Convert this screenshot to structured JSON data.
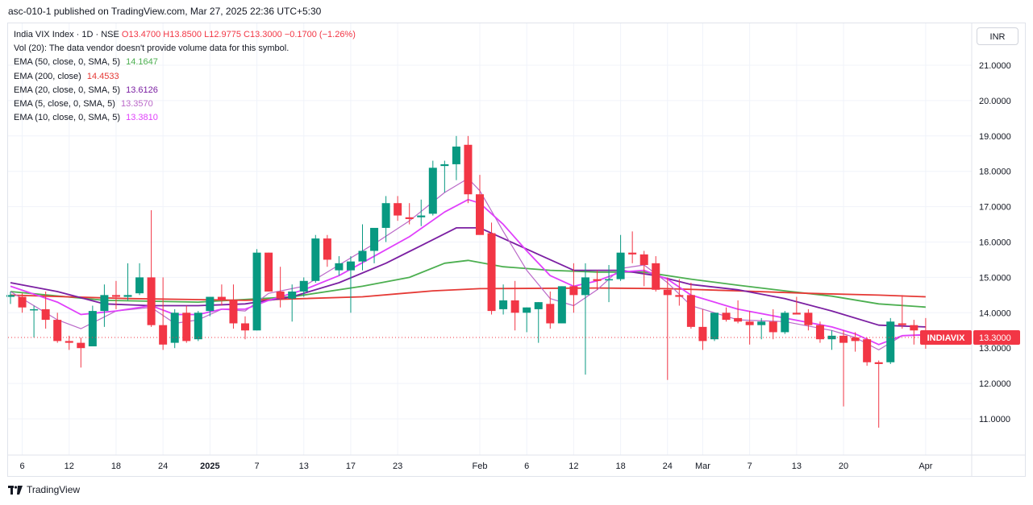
{
  "header": {
    "published": "asc-010-1 published on TradingView.com, Mar 27, 2025 22:36 UTC+5:30"
  },
  "legend": {
    "symbol": "India VIX Index · 1D · NSE",
    "open": "O13.4700",
    "high": "H13.8500",
    "low": "L12.9775",
    "close": "C13.3000",
    "change": "−0.1700 (−1.26%)",
    "vol": "Vol (20): The data vendor doesn't provide volume data for this symbol.",
    "indicators": [
      {
        "label": "EMA (50, close, 0, SMA, 5)",
        "value": "14.1647",
        "color": "#4caf50"
      },
      {
        "label": "EMA (200, close)",
        "value": "14.4533",
        "color": "#e53935"
      },
      {
        "label": "EMA (20, close, 0, SMA, 5)",
        "value": "13.6126",
        "color": "#7b1fa2"
      },
      {
        "label": "EMA (5, close, 0, SMA, 5)",
        "value": "13.3570",
        "color": "#ba68c8"
      },
      {
        "label": "EMA (10, close, 0, SMA, 5)",
        "value": "13.3810",
        "color": "#e040fb"
      }
    ]
  },
  "currency": "INR",
  "brand": "TradingView",
  "colors": {
    "up": "#089981",
    "down": "#f23645",
    "grid": "#f0f3fa",
    "axis_text": "#131722",
    "last_price_bg": "#f23645"
  },
  "chart_data": {
    "type": "candlestick",
    "title": "India VIX Index · 1D · NSE",
    "ylim": [
      10.5,
      21.5
    ],
    "y_ticks": [
      "11.0000",
      "12.0000",
      "13.0000",
      "14.0000",
      "15.0000",
      "16.0000",
      "17.0000",
      "18.0000",
      "19.0000",
      "20.0000",
      "21.0000"
    ],
    "x_ticks": [
      {
        "label": "6",
        "index": 1
      },
      {
        "label": "12",
        "index": 5
      },
      {
        "label": "18",
        "index": 9
      },
      {
        "label": "24",
        "index": 13
      },
      {
        "label": "2025",
        "index": 17
      },
      {
        "label": "7",
        "index": 21
      },
      {
        "label": "13",
        "index": 25
      },
      {
        "label": "17",
        "index": 29
      },
      {
        "label": "23",
        "index": 33
      },
      {
        "label": "Feb",
        "index": 40
      },
      {
        "label": "6",
        "index": 44
      },
      {
        "label": "12",
        "index": 48
      },
      {
        "label": "18",
        "index": 52
      },
      {
        "label": "24",
        "index": 56
      },
      {
        "label": "Mar",
        "index": 59
      },
      {
        "label": "7",
        "index": 63
      },
      {
        "label": "13",
        "index": 67
      },
      {
        "label": "20",
        "index": 71
      },
      {
        "label": "Apr",
        "index": 78
      }
    ],
    "last_price": {
      "label": "INDIAVIX",
      "value": 13.3
    },
    "candles": [
      [
        14.45,
        14.6,
        14.25,
        14.5
      ],
      [
        14.45,
        14.55,
        14.0,
        14.15
      ],
      [
        14.1,
        14.2,
        13.3,
        14.1
      ],
      [
        14.1,
        14.6,
        13.55,
        13.8
      ],
      [
        13.8,
        14.0,
        13.15,
        13.2
      ],
      [
        13.2,
        13.35,
        12.95,
        13.15
      ],
      [
        13.15,
        13.3,
        12.45,
        13.0
      ],
      [
        13.05,
        14.2,
        13.05,
        14.05
      ],
      [
        14.05,
        14.8,
        13.6,
        14.5
      ],
      [
        14.5,
        14.9,
        14.1,
        14.45
      ],
      [
        14.45,
        15.4,
        14.35,
        14.5
      ],
      [
        14.55,
        15.4,
        14.5,
        15.0
      ],
      [
        15.0,
        16.9,
        13.6,
        13.65
      ],
      [
        13.65,
        15.0,
        12.95,
        13.1
      ],
      [
        13.15,
        14.1,
        13.0,
        14.0
      ],
      [
        14.0,
        14.2,
        13.15,
        13.2
      ],
      [
        13.25,
        14.05,
        13.2,
        14.0
      ],
      [
        14.05,
        14.4,
        13.9,
        14.45
      ],
      [
        14.45,
        14.8,
        14.2,
        14.35
      ],
      [
        14.35,
        14.8,
        13.55,
        13.7
      ],
      [
        13.7,
        13.9,
        13.25,
        13.5
      ],
      [
        13.5,
        15.8,
        13.5,
        15.7
      ],
      [
        15.7,
        15.7,
        14.6,
        14.6
      ],
      [
        14.6,
        15.3,
        14.15,
        14.4
      ],
      [
        14.4,
        14.8,
        13.75,
        14.6
      ],
      [
        14.6,
        15.0,
        14.45,
        14.9
      ],
      [
        14.9,
        16.2,
        14.85,
        16.1
      ],
      [
        16.1,
        16.2,
        15.3,
        15.5
      ],
      [
        15.2,
        15.6,
        15.05,
        15.4
      ],
      [
        15.2,
        15.6,
        14.0,
        15.45
      ],
      [
        15.45,
        16.5,
        15.2,
        15.75
      ],
      [
        15.75,
        16.3,
        15.4,
        16.4
      ],
      [
        16.4,
        17.3,
        16.0,
        17.1
      ],
      [
        17.1,
        17.3,
        16.6,
        16.75
      ],
      [
        16.7,
        17.1,
        16.5,
        16.65
      ],
      [
        16.7,
        17.2,
        16.45,
        16.75
      ],
      [
        16.8,
        18.3,
        16.75,
        18.1
      ],
      [
        18.15,
        18.3,
        17.4,
        18.2
      ],
      [
        18.2,
        19.0,
        17.75,
        18.7
      ],
      [
        18.75,
        19.0,
        17.1,
        17.35
      ],
      [
        17.35,
        17.9,
        16.25,
        16.2
      ],
      [
        16.25,
        16.55,
        13.95,
        14.05
      ],
      [
        14.1,
        14.8,
        13.95,
        14.35
      ],
      [
        14.35,
        14.9,
        13.5,
        14.0
      ],
      [
        14.0,
        14.15,
        13.45,
        14.15
      ],
      [
        14.1,
        14.3,
        13.15,
        14.3
      ],
      [
        14.25,
        14.6,
        13.55,
        13.7
      ],
      [
        13.7,
        14.75,
        13.7,
        14.75
      ],
      [
        14.75,
        15.4,
        14.0,
        14.5
      ],
      [
        14.5,
        15.4,
        12.25,
        15.0
      ],
      [
        14.95,
        15.2,
        14.65,
        14.9
      ],
      [
        14.95,
        15.35,
        14.3,
        14.95
      ],
      [
        14.95,
        16.2,
        14.9,
        15.7
      ],
      [
        15.7,
        16.3,
        15.4,
        15.65
      ],
      [
        15.65,
        15.75,
        14.75,
        15.35
      ],
      [
        15.4,
        15.6,
        14.6,
        14.65
      ],
      [
        14.65,
        15.0,
        12.1,
        14.5
      ],
      [
        14.5,
        14.95,
        14.2,
        14.45
      ],
      [
        14.5,
        14.85,
        13.55,
        13.6
      ],
      [
        13.6,
        14.1,
        12.95,
        13.2
      ],
      [
        13.25,
        14.0,
        13.2,
        14.0
      ],
      [
        14.0,
        14.15,
        13.75,
        13.8
      ],
      [
        13.85,
        14.35,
        13.7,
        13.75
      ],
      [
        13.75,
        14.05,
        13.1,
        13.65
      ],
      [
        13.65,
        13.85,
        13.25,
        13.75
      ],
      [
        13.75,
        14.1,
        13.25,
        13.45
      ],
      [
        13.45,
        14.05,
        13.4,
        14.0
      ],
      [
        14.0,
        14.45,
        13.95,
        13.95
      ],
      [
        14.0,
        14.1,
        13.5,
        13.65
      ],
      [
        13.65,
        13.75,
        13.15,
        13.25
      ],
      [
        13.25,
        13.5,
        12.95,
        13.35
      ],
      [
        13.35,
        13.5,
        11.35,
        13.15
      ],
      [
        13.3,
        13.45,
        12.9,
        13.2
      ],
      [
        13.25,
        13.3,
        12.5,
        12.6
      ],
      [
        12.6,
        12.65,
        10.75,
        12.55
      ],
      [
        12.6,
        13.85,
        12.55,
        13.75
      ],
      [
        13.7,
        14.5,
        13.55,
        13.65
      ],
      [
        13.65,
        13.8,
        13.1,
        13.5
      ],
      [
        13.47,
        13.85,
        12.98,
        13.3
      ]
    ],
    "series": [
      {
        "name": "EMA (50, close, 0, SMA, 5)",
        "color": "#4caf50",
        "points": [
          [
            0,
            14.6
          ],
          [
            8,
            14.35
          ],
          [
            16,
            14.3
          ],
          [
            24,
            14.45
          ],
          [
            30,
            14.75
          ],
          [
            34,
            15.0
          ],
          [
            37,
            15.4
          ],
          [
            39,
            15.48
          ],
          [
            42,
            15.3
          ],
          [
            46,
            15.2
          ],
          [
            50,
            15.15
          ],
          [
            54,
            15.15
          ],
          [
            58,
            14.95
          ],
          [
            62,
            14.78
          ],
          [
            66,
            14.62
          ],
          [
            70,
            14.47
          ],
          [
            74,
            14.25
          ],
          [
            78,
            14.16
          ]
        ]
      },
      {
        "name": "EMA (200, close)",
        "color": "#e53935",
        "points": [
          [
            0,
            14.5
          ],
          [
            10,
            14.4
          ],
          [
            20,
            14.35
          ],
          [
            30,
            14.45
          ],
          [
            36,
            14.62
          ],
          [
            40,
            14.68
          ],
          [
            50,
            14.7
          ],
          [
            56,
            14.68
          ],
          [
            62,
            14.62
          ],
          [
            68,
            14.55
          ],
          [
            74,
            14.5
          ],
          [
            78,
            14.45
          ]
        ]
      },
      {
        "name": "EMA (20, close, 0, SMA, 5)",
        "color": "#7b1fa2",
        "points": [
          [
            0,
            14.85
          ],
          [
            4,
            14.6
          ],
          [
            8,
            14.25
          ],
          [
            12,
            14.2
          ],
          [
            16,
            14.2
          ],
          [
            20,
            14.25
          ],
          [
            24,
            14.45
          ],
          [
            28,
            14.85
          ],
          [
            32,
            15.4
          ],
          [
            35,
            15.9
          ],
          [
            38,
            16.4
          ],
          [
            40,
            16.4
          ],
          [
            42,
            16.1
          ],
          [
            45,
            15.65
          ],
          [
            48,
            15.2
          ],
          [
            52,
            15.2
          ],
          [
            55,
            15.05
          ],
          [
            58,
            14.8
          ],
          [
            62,
            14.65
          ],
          [
            66,
            14.4
          ],
          [
            70,
            14.05
          ],
          [
            74,
            13.65
          ],
          [
            78,
            13.6
          ]
        ]
      },
      {
        "name": "EMA (5, close, 0, SMA, 5)",
        "color": "#ba68c8",
        "points": [
          [
            0,
            14.6
          ],
          [
            4,
            13.8
          ],
          [
            6,
            13.55
          ],
          [
            9,
            14.05
          ],
          [
            12,
            14.15
          ],
          [
            14,
            13.7
          ],
          [
            16,
            13.8
          ],
          [
            18,
            14.1
          ],
          [
            20,
            14.05
          ],
          [
            22,
            14.55
          ],
          [
            25,
            14.75
          ],
          [
            28,
            15.35
          ],
          [
            31,
            15.95
          ],
          [
            34,
            16.6
          ],
          [
            37,
            17.4
          ],
          [
            39,
            17.8
          ],
          [
            40,
            17.45
          ],
          [
            42,
            16.3
          ],
          [
            44,
            15.2
          ],
          [
            46,
            14.4
          ],
          [
            48,
            14.2
          ],
          [
            50,
            14.65
          ],
          [
            52,
            15.25
          ],
          [
            54,
            15.35
          ],
          [
            56,
            14.85
          ],
          [
            58,
            14.2
          ],
          [
            62,
            13.8
          ],
          [
            66,
            13.75
          ],
          [
            70,
            13.5
          ],
          [
            72,
            13.3
          ],
          [
            74,
            12.95
          ],
          [
            76,
            13.35
          ],
          [
            78,
            13.36
          ]
        ]
      },
      {
        "name": "EMA (10, close, 0, SMA, 5)",
        "color": "#e040fb",
        "points": [
          [
            0,
            14.75
          ],
          [
            4,
            14.3
          ],
          [
            6,
            13.95
          ],
          [
            9,
            14.05
          ],
          [
            12,
            14.2
          ],
          [
            14,
            13.95
          ],
          [
            16,
            13.95
          ],
          [
            18,
            14.1
          ],
          [
            20,
            14.1
          ],
          [
            22,
            14.35
          ],
          [
            25,
            14.65
          ],
          [
            28,
            15.05
          ],
          [
            31,
            15.6
          ],
          [
            34,
            16.15
          ],
          [
            37,
            16.85
          ],
          [
            39,
            17.2
          ],
          [
            40,
            17.1
          ],
          [
            42,
            16.5
          ],
          [
            44,
            15.75
          ],
          [
            46,
            15.05
          ],
          [
            48,
            14.75
          ],
          [
            50,
            14.9
          ],
          [
            52,
            15.15
          ],
          [
            54,
            15.2
          ],
          [
            56,
            14.95
          ],
          [
            58,
            14.5
          ],
          [
            62,
            14.1
          ],
          [
            66,
            13.85
          ],
          [
            70,
            13.6
          ],
          [
            72,
            13.4
          ],
          [
            74,
            13.1
          ],
          [
            76,
            13.35
          ],
          [
            78,
            13.38
          ]
        ]
      }
    ]
  }
}
